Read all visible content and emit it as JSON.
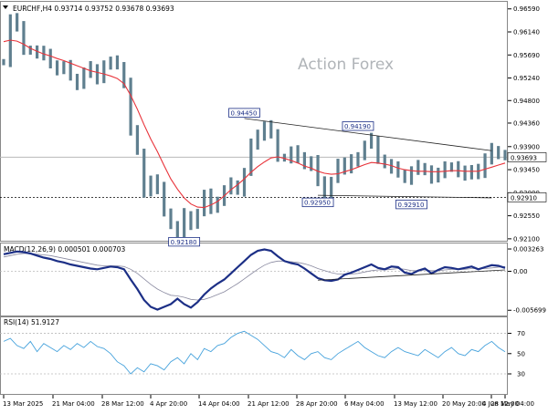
{
  "header": {
    "symbol_line": "EURCHF,H4  0.93714 0.93752 0.93678 0.93693"
  },
  "watermark": "Action Forex",
  "colors": {
    "price_bar": "#5f7f8f",
    "moving_average": "#e8333a",
    "macd_line": "#1c2f86",
    "macd_signal": "#8a8aa0",
    "rsi_line": "#46a2dc",
    "trendline": "#222222",
    "label_box": "#1c2f86",
    "grid": "#c8c8c8"
  },
  "chart_data": [
    {
      "type": "line",
      "name": "price",
      "title": "EURCHF,H4",
      "ohlc_header": {
        "open": 0.93714,
        "high": 0.93752,
        "low": 0.93678,
        "close": 0.93693
      },
      "y_ticks": [
        0.9659,
        0.9614,
        0.9569,
        0.9524,
        0.948,
        0.9436,
        0.939,
        0.9345,
        0.93,
        0.9255,
        0.921
      ],
      "y_tick_labels": [
        "0.96590",
        "0.96140",
        "0.95690",
        "0.95240",
        "0.94800",
        "0.94360",
        "0.93900",
        "0.93450",
        "0.93000",
        "0.92550",
        "0.92100"
      ],
      "ylim": [
        0.9208,
        0.9671
      ],
      "current_price": 0.93693,
      "support_level": 0.9291,
      "close_series": [
        0.9555,
        0.964,
        0.9622,
        0.958,
        0.9578,
        0.9568,
        0.9575,
        0.955,
        0.954,
        0.9546,
        0.9525,
        0.951,
        0.9535,
        0.9545,
        0.952,
        0.955,
        0.9555,
        0.9548,
        0.9515,
        0.942,
        0.938,
        0.93,
        0.9325,
        0.9308,
        0.9262,
        0.9235,
        0.9218,
        0.9258,
        0.9238,
        0.926,
        0.9295,
        0.9268,
        0.9285,
        0.9305,
        0.9318,
        0.9302,
        0.934,
        0.9395,
        0.941,
        0.9432,
        0.9412,
        0.937,
        0.9368,
        0.9382,
        0.9366,
        0.9352,
        0.9364,
        0.932,
        0.9298,
        0.9325,
        0.9358,
        0.9345,
        0.9362,
        0.9372,
        0.9392,
        0.9405,
        0.9366,
        0.9355,
        0.9348,
        0.9338,
        0.9325,
        0.9342,
        0.9352,
        0.9345,
        0.9326,
        0.9338,
        0.9348,
        0.9352,
        0.9341,
        0.9332,
        0.9348,
        0.9336,
        0.9366,
        0.9384,
        0.9374,
        0.93693
      ],
      "ma_series": [
        0.9595,
        0.9598,
        0.9596,
        0.959,
        0.9582,
        0.9576,
        0.9571,
        0.9567,
        0.9562,
        0.9558,
        0.9553,
        0.9548,
        0.9543,
        0.9538,
        0.9535,
        0.9532,
        0.9528,
        0.9523,
        0.9513,
        0.949,
        0.9463,
        0.9433,
        0.9405,
        0.938,
        0.9353,
        0.9327,
        0.9307,
        0.929,
        0.9278,
        0.9272,
        0.9271,
        0.9276,
        0.9283,
        0.9294,
        0.9306,
        0.9316,
        0.9327,
        0.934,
        0.9351,
        0.936,
        0.9368,
        0.937,
        0.9367,
        0.9363,
        0.9358,
        0.9352,
        0.9348,
        0.9342,
        0.9338,
        0.9336,
        0.9337,
        0.9341,
        0.9345,
        0.935,
        0.9355,
        0.9359,
        0.9358,
        0.9356,
        0.9353,
        0.9348,
        0.9345,
        0.9343,
        0.9342,
        0.9342,
        0.9341,
        0.9341,
        0.9342,
        0.9343,
        0.9343,
        0.9342,
        0.9342,
        0.9342,
        0.9346,
        0.935,
        0.9354,
        0.9358
      ],
      "annotations": [
        {
          "text": "0.94450",
          "value": 0.9445
        },
        {
          "text": "0.94190",
          "value": 0.9419
        },
        {
          "text": "0.92950",
          "value": 0.9295
        },
        {
          "text": "0.92910",
          "value": 0.9291
        },
        {
          "text": "0.92180",
          "value": 0.9218
        }
      ],
      "current_price_label": "0.93693",
      "support_label": "0.92910",
      "watermark": "Action Forex"
    },
    {
      "type": "line",
      "name": "macd",
      "title": "MACD(12,26,9) 0.000501 0.000703",
      "y_ticks": [
        0.003263,
        0.0,
        -0.005699
      ],
      "y_tick_labels": [
        "0.003263",
        "0.00",
        "-0.005699"
      ],
      "ylim": [
        -0.0062,
        0.0038
      ],
      "macd_series": [
        0.0025,
        0.0027,
        0.0029,
        0.0028,
        0.0026,
        0.0023,
        0.002,
        0.0018,
        0.0015,
        0.0013,
        0.001,
        0.0008,
        0.0006,
        0.0004,
        0.0003,
        0.0005,
        0.0007,
        0.0006,
        0.0003,
        -0.0012,
        -0.0026,
        -0.0042,
        -0.0052,
        -0.0056,
        -0.0052,
        -0.0048,
        -0.004,
        -0.0048,
        -0.0053,
        -0.0045,
        -0.0034,
        -0.0025,
        -0.0018,
        -0.0012,
        -0.0003,
        0.0006,
        0.0015,
        0.0024,
        0.003,
        0.0032,
        0.003,
        0.0022,
        0.0015,
        0.0012,
        0.001,
        0.0004,
        -0.0003,
        -0.001,
        -0.0013,
        -0.0014,
        -0.0012,
        -0.0005,
        -0.0002,
        0.0002,
        0.0006,
        0.001,
        0.0005,
        0.0003,
        0.0007,
        0.0006,
        -0.0002,
        -0.0004,
        0.0001,
        0.0004,
        -0.0003,
        0.0002,
        0.0006,
        0.0005,
        0.0003,
        0.0005,
        0.0007,
        0.0003,
        0.0006,
        0.0009,
        0.0008,
        0.0005
      ],
      "signal_series": [
        0.0021,
        0.0023,
        0.0025,
        0.0026,
        0.0026,
        0.0025,
        0.0024,
        0.0023,
        0.0021,
        0.0019,
        0.0017,
        0.0015,
        0.0013,
        0.0011,
        0.0009,
        0.0008,
        0.0008,
        0.0008,
        0.0007,
        0.0003,
        -0.0003,
        -0.0011,
        -0.0019,
        -0.0026,
        -0.0031,
        -0.0035,
        -0.0036,
        -0.0038,
        -0.0041,
        -0.0042,
        -0.0041,
        -0.0038,
        -0.0034,
        -0.003,
        -0.0024,
        -0.0018,
        -0.0011,
        -0.0004,
        0.0003,
        0.0009,
        0.0013,
        0.0015,
        0.0015,
        0.0014,
        0.0013,
        0.0011,
        0.0008,
        0.0004,
        0.0001,
        -0.0002,
        -0.0004,
        -0.0004,
        -0.0004,
        -0.0003,
        -0.0001,
        0.0001,
        0.0002,
        0.0002,
        0.0003,
        0.0004,
        0.0003,
        0.0001,
        0.0001,
        0.0002,
        0.0001,
        0.0001,
        0.0002,
        0.0003,
        0.0003,
        0.0003,
        0.0004,
        0.0004,
        0.0004,
        0.0005,
        0.0006,
        0.0007
      ]
    },
    {
      "type": "line",
      "name": "rsi",
      "title": "RSI(14) 51.9127",
      "y_ticks": [
        70,
        50,
        30
      ],
      "y_tick_labels": [
        "70",
        "50",
        "30"
      ],
      "ylim": [
        12,
        84
      ],
      "rsi_series": [
        62,
        65,
        58,
        55,
        62,
        52,
        60,
        56,
        52,
        58,
        54,
        60,
        56,
        62,
        57,
        55,
        50,
        42,
        38,
        30,
        36,
        32,
        40,
        38,
        34,
        42,
        46,
        40,
        50,
        44,
        55,
        52,
        58,
        60,
        66,
        70,
        72,
        68,
        64,
        58,
        52,
        50,
        46,
        54,
        48,
        44,
        50,
        52,
        46,
        44,
        50,
        54,
        58,
        62,
        56,
        52,
        48,
        46,
        52,
        56,
        52,
        50,
        48,
        54,
        50,
        46,
        52,
        56,
        50,
        48,
        54,
        52,
        58,
        62,
        56,
        51.9127
      ],
      "rsi_label_text": "51.9127"
    }
  ],
  "x_axis": {
    "labels": [
      "13 Mar 2025",
      "21 Mar 04:00",
      "28 Mar 12:00",
      "4 Apr 20:00",
      "14 Apr 04:00",
      "21 Apr 12:00",
      "28 Apr 20:00",
      "6 May 04:00",
      "13 May 12:00",
      "20 May 20:00",
      "28 May 04:00",
      "4 Jun 12:00"
    ]
  }
}
